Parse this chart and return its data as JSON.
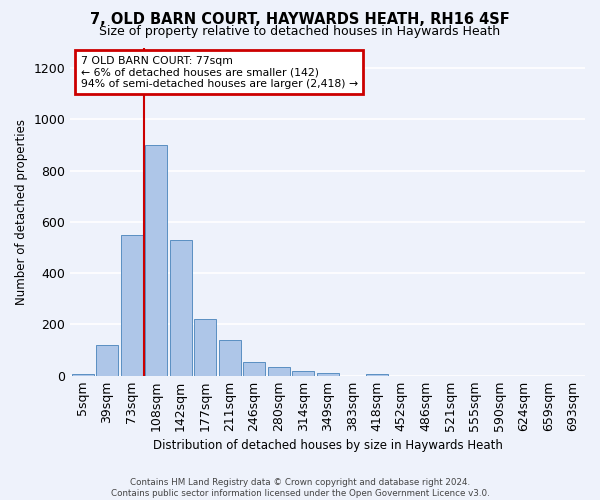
{
  "title": "7, OLD BARN COURT, HAYWARDS HEATH, RH16 4SF",
  "subtitle": "Size of property relative to detached houses in Haywards Heath",
  "xlabel": "Distribution of detached houses by size in Haywards Heath",
  "ylabel": "Number of detached properties",
  "bin_labels": [
    "5sqm",
    "39sqm",
    "73sqm",
    "108sqm",
    "142sqm",
    "177sqm",
    "211sqm",
    "246sqm",
    "280sqm",
    "314sqm",
    "349sqm",
    "383sqm",
    "418sqm",
    "452sqm",
    "486sqm",
    "521sqm",
    "555sqm",
    "590sqm",
    "624sqm",
    "659sqm",
    "693sqm"
  ],
  "bar_values": [
    8,
    118,
    548,
    900,
    530,
    220,
    140,
    52,
    32,
    20,
    10,
    0,
    8,
    0,
    0,
    0,
    0,
    0,
    0,
    0,
    0
  ],
  "bar_color": "#aec6e8",
  "bar_edge_color": "#5a8fc2",
  "ylim": [
    0,
    1280
  ],
  "yticks": [
    0,
    200,
    400,
    600,
    800,
    1000,
    1200
  ],
  "annotation_line1": "7 OLD BARN COURT: 77sqm",
  "annotation_line2": "← 6% of detached houses are smaller (142)",
  "annotation_line3": "94% of semi-detached houses are larger (2,418) →",
  "vline_bin_index": 2,
  "background_color": "#eef2fb",
  "grid_color": "#ffffff",
  "annotation_box_bg": "#ffffff",
  "annotation_box_edge": "#cc0000",
  "vline_color": "#cc0000",
  "footer_line1": "Contains HM Land Registry data © Crown copyright and database right 2024.",
  "footer_line2": "Contains public sector information licensed under the Open Government Licence v3.0."
}
